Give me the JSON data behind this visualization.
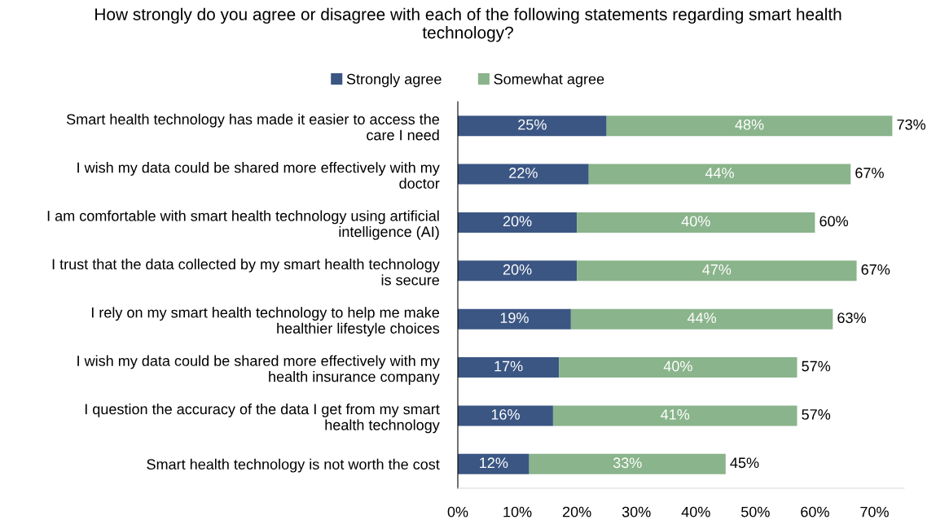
{
  "chart_data": {
    "type": "bar",
    "orientation": "horizontal",
    "stacked": true,
    "title": "How strongly do you agree or disagree with each of the following statements regarding smart health\ntechnology?",
    "categories": [
      "Smart health technology has made it easier to access the\ncare I need",
      "I wish my data could be shared more effectively with my\ndoctor",
      "I am comfortable with smart health technology using artificial\nintelligence (AI)",
      "I trust that the data collected by my smart health technology\nis secure",
      "I rely on my smart health technology to help me make\nhealthier lifestyle choices",
      "I wish my data could be shared more effectively with my\nhealth insurance company",
      "I question the accuracy of the data I get from my smart\nhealth technology",
      "Smart health technology is not worth the cost"
    ],
    "series": [
      {
        "name": "Strongly agree",
        "color": "#3b5683",
        "values": [
          25,
          22,
          20,
          20,
          19,
          17,
          16,
          12
        ],
        "value_labels": [
          "25%",
          "22%",
          "20%",
          "20%",
          "19%",
          "17%",
          "16%",
          "12%"
        ]
      },
      {
        "name": "Somewhat agree",
        "color": "#8ab48b",
        "values": [
          48,
          44,
          40,
          47,
          44,
          40,
          41,
          33
        ],
        "value_labels": [
          "48%",
          "44%",
          "40%",
          "47%",
          "44%",
          "40%",
          "41%",
          "33%"
        ]
      }
    ],
    "totals": [
      "73%",
      "67%",
      "60%",
      "67%",
      "63%",
      "57%",
      "57%",
      "45%"
    ],
    "xlim": [
      0,
      75
    ],
    "xticks": [
      {
        "value": 0,
        "label": "0%"
      },
      {
        "value": 10,
        "label": "10%"
      },
      {
        "value": 20,
        "label": "20%"
      },
      {
        "value": 30,
        "label": "30%"
      },
      {
        "value": 40,
        "label": "40%"
      },
      {
        "value": 50,
        "label": "50%"
      },
      {
        "value": 60,
        "label": "60%"
      },
      {
        "value": 70,
        "label": "70%"
      }
    ],
    "legend": "top",
    "grid": false
  }
}
